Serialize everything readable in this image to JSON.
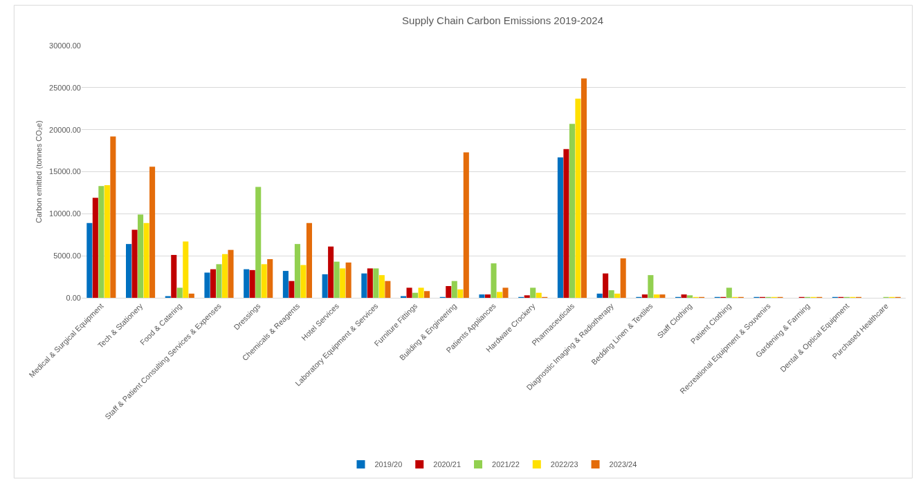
{
  "chart_data": {
    "type": "bar",
    "title": "Supply Chain Carbon Emissions 2019-2024",
    "ylabel": "Carbon emitted (tonnes CO₂e)",
    "categories": [
      "Medical & Surgical Equipment",
      "Tech & Stationery",
      "Food & Catering",
      "Staff & Patient Consulting Services & Expenses",
      "Dressings",
      "Chemicals & Reagents",
      "Hotel Services",
      "Laboratory Equipment & Services",
      "Furniture Fittings",
      "Building & Engineering",
      "Patients Appliances",
      "Hardware Crockery",
      "Pharmaceuticals",
      "Diagnostic Imaging & Radiotherapy",
      "Bedding Linen & Textiles",
      "Staff Clothing",
      "Patient Clothing",
      "Recreational Equipment & Souvenirs",
      "Gardening & Farming",
      "Dental & Optical Equipment",
      "Purchased Healthcare"
    ],
    "series": [
      {
        "name": "2019/20",
        "color": "#0070c0",
        "values": [
          8900,
          6400,
          200,
          3000,
          3400,
          3200,
          2800,
          2900,
          200,
          100,
          400,
          100,
          16700,
          500,
          100,
          100,
          100,
          100,
          null,
          100,
          null
        ]
      },
      {
        "name": "2020/21",
        "color": "#c00000",
        "values": [
          11900,
          8100,
          5100,
          3400,
          3300,
          2000,
          6100,
          3500,
          1200,
          1400,
          400,
          300,
          17700,
          2900,
          400,
          400,
          100,
          100,
          100,
          100,
          null
        ]
      },
      {
        "name": "2021/22",
        "color": "#92d050",
        "values": [
          13300,
          9900,
          1200,
          4000,
          13200,
          6400,
          4300,
          3500,
          600,
          2000,
          4100,
          1200,
          20700,
          900,
          2700,
          300,
          1200,
          100,
          100,
          100,
          100
        ]
      },
      {
        "name": "2022/23",
        "color": "#ffe000",
        "values": [
          13400,
          8900,
          6700,
          5200,
          4000,
          3900,
          3500,
          2700,
          1200,
          1000,
          700,
          600,
          23700,
          500,
          400,
          100,
          100,
          100,
          100,
          100,
          100
        ]
      },
      {
        "name": "2023/24",
        "color": "#e46c0a",
        "values": [
          19200,
          15600,
          500,
          5700,
          4600,
          8900,
          4200,
          2000,
          800,
          17300,
          1200,
          100,
          26100,
          4700,
          400,
          100,
          100,
          100,
          100,
          100,
          100
        ]
      }
    ],
    "ylim": [
      0,
      30000
    ],
    "yticks": [
      {
        "value": 0,
        "label": "0.00"
      },
      {
        "value": 5000,
        "label": "5000.00"
      },
      {
        "value": 10000,
        "label": "10000.00"
      },
      {
        "value": 15000,
        "label": "15000.00"
      },
      {
        "value": 20000,
        "label": "20000.00"
      },
      {
        "value": 25000,
        "label": "25000.00"
      },
      {
        "value": 30000,
        "label": "30000.00"
      }
    ],
    "grid": "y",
    "legend": "bottom"
  }
}
